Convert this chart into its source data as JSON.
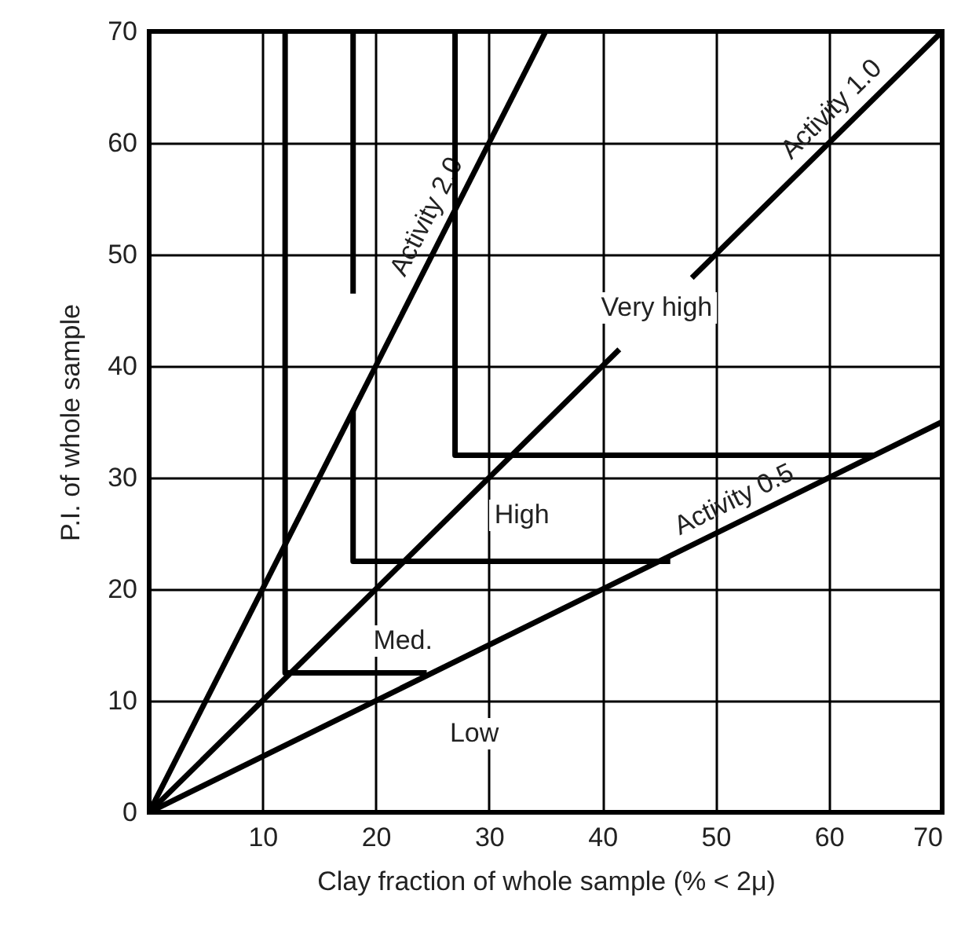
{
  "chart_data": {
    "type": "line",
    "xlabel": "Clay fraction of whole sample (% < 2μ)",
    "ylabel": "P.I. of whole sample",
    "xlim": [
      0,
      70
    ],
    "ylim": [
      0,
      70
    ],
    "xticks": [
      10,
      20,
      30,
      40,
      50,
      60,
      70
    ],
    "yticks": [
      0,
      10,
      20,
      30,
      40,
      50,
      60,
      70
    ],
    "grid": true,
    "marker": "none",
    "line_style": "solid",
    "series": [
      {
        "name": "Activity 2.0",
        "color": "#000000",
        "x": [
          0,
          35
        ],
        "values": [
          0,
          70
        ]
      },
      {
        "name": "Activity 1.0",
        "color": "#000000",
        "x": [
          0,
          41.5,
          null,
          47.9,
          70
        ],
        "values": [
          0,
          41.5,
          null,
          47.9,
          70
        ]
      },
      {
        "name": "Activity 0.5",
        "color": "#000000",
        "x": [
          0,
          70
        ],
        "values": [
          0,
          35
        ]
      },
      {
        "color": "#000000",
        "x": [
          12,
          12,
          24.5
        ],
        "values": [
          70,
          12.5,
          12.5
        ]
      },
      {
        "color": "#000000",
        "x": [
          18,
          18,
          null,
          18,
          18,
          46
        ],
        "values": [
          70,
          46.5,
          null,
          36,
          22.5,
          22.5
        ]
      },
      {
        "color": "#000000",
        "x": [
          27,
          27,
          64
        ],
        "values": [
          70,
          32,
          32
        ]
      }
    ],
    "annotations": [
      "Low",
      "Med.",
      "High",
      "Very high"
    ]
  }
}
